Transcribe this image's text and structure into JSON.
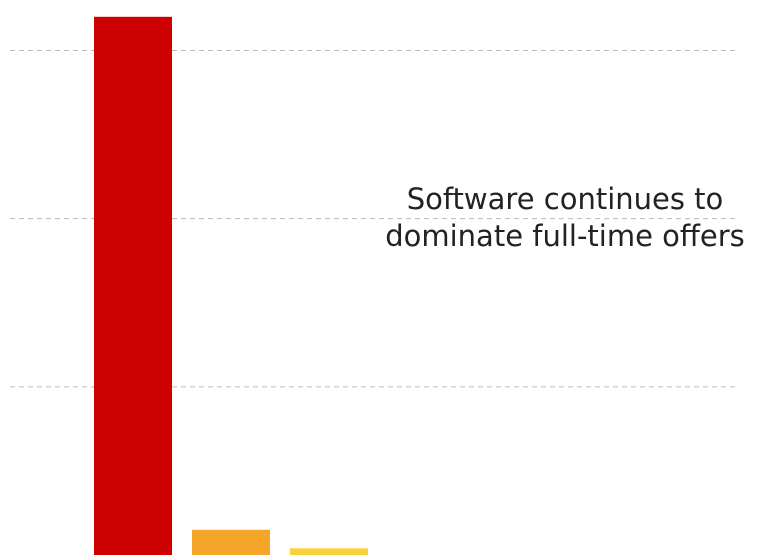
{
  "chart_data": {
    "type": "bar",
    "annotation": [
      "Software continues to",
      "dominate full-time offers"
    ],
    "categories": [
      null,
      null,
      null
    ],
    "values": [
      3.2,
      0.15,
      0.04
    ],
    "colors": [
      "#cc0000",
      "#f5a52a",
      "#f8d13b"
    ],
    "ylim": [
      0,
      3.3
    ],
    "yticks": [
      1,
      2,
      3
    ],
    "grid": true
  }
}
